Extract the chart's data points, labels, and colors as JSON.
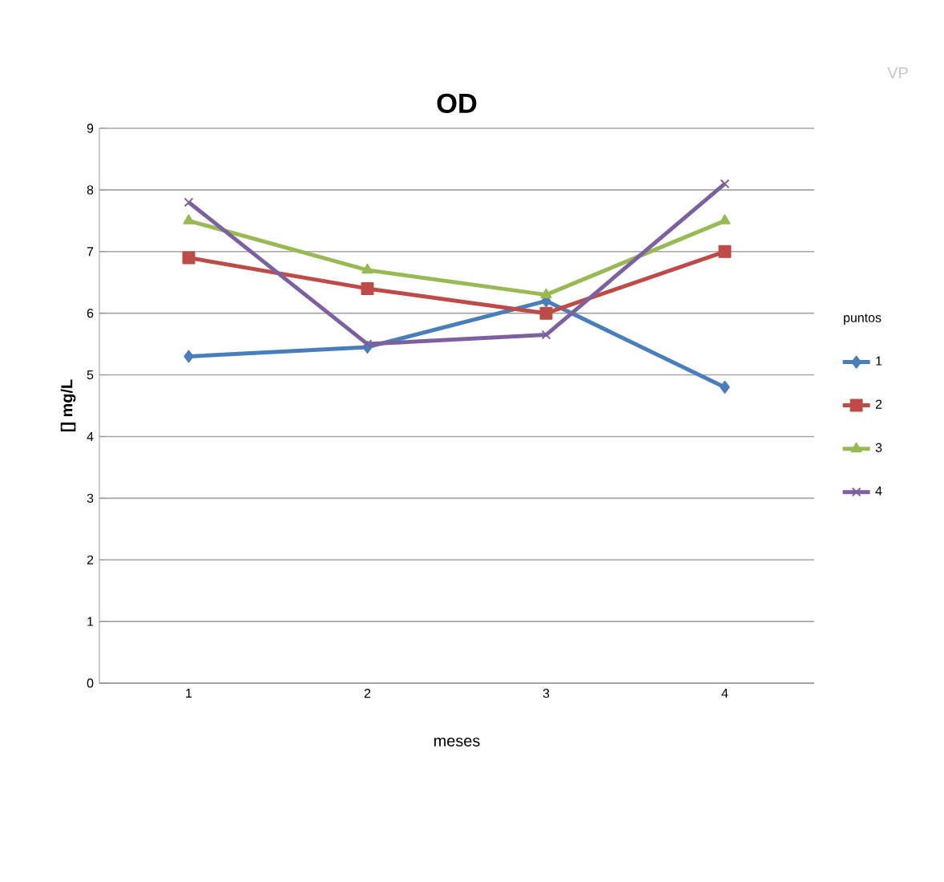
{
  "chart_data": {
    "type": "line",
    "title": "OD",
    "xlabel": "meses",
    "ylabel": "[] mg/L",
    "legend_title": "puntos",
    "annotations": [
      "VP"
    ],
    "categories": [
      "1",
      "2",
      "3",
      "4"
    ],
    "series": [
      {
        "name": "1",
        "color": "#4a7ebb",
        "marker": "diamond",
        "values": [
          5.3,
          5.45,
          6.2,
          4.8
        ]
      },
      {
        "name": "2",
        "color": "#be4b48",
        "marker": "square",
        "values": [
          6.9,
          6.4,
          6.0,
          7.0
        ]
      },
      {
        "name": "3",
        "color": "#98b954",
        "marker": "triangle",
        "values": [
          7.5,
          6.7,
          6.3,
          7.5
        ]
      },
      {
        "name": "4",
        "color": "#7d60a0",
        "marker": "cross",
        "values": [
          7.8,
          5.5,
          5.65,
          8.1
        ]
      }
    ],
    "ylim": [
      0,
      9
    ],
    "yticks": [
      0,
      1,
      2,
      3,
      4,
      5,
      6,
      7,
      8,
      9
    ],
    "grid": "y",
    "legend": "right",
    "line_style": "solid"
  }
}
